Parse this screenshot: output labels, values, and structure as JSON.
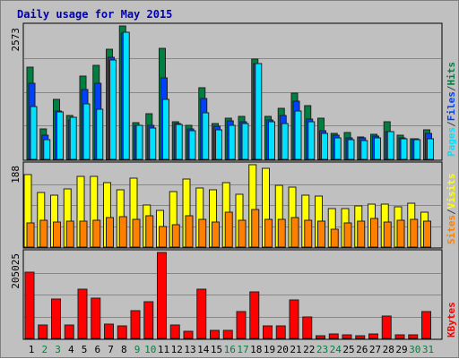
{
  "chart_data": [
    {
      "type": "bar",
      "title": "Daily usage for May 2015",
      "ymax_label": "2573",
      "legend": [
        {
          "text": "Pages",
          "color": "#00e0ff"
        },
        {
          "text": "/",
          "color": "#404040"
        },
        {
          "text": "Files",
          "color": "#0040ff"
        },
        {
          "text": "/",
          "color": "#404040"
        },
        {
          "text": "Hits",
          "color": "#008040"
        }
      ],
      "categories": [
        "1",
        "2",
        "3",
        "4",
        "5",
        "6",
        "7",
        "8",
        "9",
        "10",
        "11",
        "12",
        "13",
        "14",
        "15",
        "16",
        "17",
        "18",
        "19",
        "20",
        "21",
        "22",
        "23",
        "24",
        "25",
        "26",
        "27",
        "28",
        "29",
        "30",
        "31"
      ],
      "weekend_days": [
        "2",
        "3",
        "9",
        "10",
        "16",
        "17",
        "23",
        "24",
        "30",
        "31"
      ],
      "ylim": [
        0,
        2573
      ],
      "series": [
        {
          "name": "Hits",
          "color": "#008040",
          "values": [
            1782,
            587,
            1163,
            842,
            1609,
            1817,
            2120,
            2573,
            716,
            880,
            2140,
            733,
            648,
            1379,
            685,
            802,
            821,
            1928,
            824,
            988,
            1270,
            1038,
            789,
            507,
            514,
            431,
            481,
            724,
            473,
            405,
            573
          ]
        },
        {
          "name": "Files",
          "color": "#0040ff",
          "values": [
            1475,
            463,
            939,
            767,
            1351,
            1461,
            1961,
            2435,
            663,
            660,
            1565,
            695,
            587,
            1167,
            643,
            743,
            722,
            1853,
            762,
            849,
            1114,
            774,
            544,
            459,
            412,
            408,
            449,
            536,
            416,
            397,
            499
          ]
        },
        {
          "name": "Pages",
          "color": "#00e0ff",
          "values": [
            1027,
            374,
            912,
            811,
            1069,
            960,
            1917,
            2449,
            650,
            600,
            1154,
            675,
            556,
            906,
            577,
            656,
            692,
            1845,
            732,
            697,
            940,
            720,
            502,
            416,
            384,
            368,
            408,
            543,
            402,
            373,
            397
          ]
        }
      ]
    },
    {
      "type": "bar",
      "ymax_label": "188",
      "legend": [
        {
          "text": "Sites",
          "color": "#ff8000"
        },
        {
          "text": "/",
          "color": "#404040"
        },
        {
          "text": "Visits",
          "color": "#ffff00"
        }
      ],
      "categories": [
        "1",
        "2",
        "3",
        "4",
        "5",
        "6",
        "7",
        "8",
        "9",
        "10",
        "11",
        "12",
        "13",
        "14",
        "15",
        "16",
        "17",
        "18",
        "19",
        "20",
        "21",
        "22",
        "23",
        "24",
        "25",
        "26",
        "27",
        "28",
        "29",
        "30",
        "31"
      ],
      "ylim": [
        0,
        188
      ],
      "series": [
        {
          "name": "Visits",
          "color": "#ffff00",
          "values": [
            165,
            125,
            118,
            133,
            161,
            161,
            148,
            131,
            157,
            97,
            84,
            127,
            156,
            135,
            130,
            147,
            121,
            188,
            180,
            140,
            136,
            118,
            117,
            87,
            87,
            95,
            98,
            99,
            91,
            101,
            79
          ]
        },
        {
          "name": "Sites",
          "color": "#ff8000",
          "values": [
            55,
            61,
            57,
            59,
            59,
            61,
            67,
            70,
            64,
            71,
            46,
            52,
            72,
            63,
            57,
            80,
            61,
            86,
            63,
            64,
            68,
            61,
            59,
            41,
            56,
            60,
            65,
            58,
            61,
            63,
            59
          ]
        }
      ]
    },
    {
      "type": "bar",
      "ymax_label": "205025",
      "legend": [
        {
          "text": "KBytes",
          "color": "#ff0000"
        }
      ],
      "categories": [
        "1",
        "2",
        "3",
        "4",
        "5",
        "6",
        "7",
        "8",
        "9",
        "10",
        "11",
        "12",
        "13",
        "14",
        "15",
        "16",
        "17",
        "18",
        "19",
        "20",
        "21",
        "22",
        "23",
        "24",
        "25",
        "26",
        "27",
        "28",
        "29",
        "30",
        "31"
      ],
      "ylim": [
        0,
        205025
      ],
      "series": [
        {
          "name": "KBytes",
          "color": "#ff0000",
          "values": [
            158000,
            32000,
            95000,
            33000,
            117000,
            97000,
            34000,
            30000,
            66000,
            88000,
            205025,
            31000,
            18000,
            117000,
            19000,
            19000,
            64000,
            112000,
            29000,
            29000,
            91000,
            51000,
            7000,
            10000,
            9000,
            7000,
            11000,
            54000,
            9000,
            8000,
            65000
          ]
        }
      ]
    }
  ]
}
